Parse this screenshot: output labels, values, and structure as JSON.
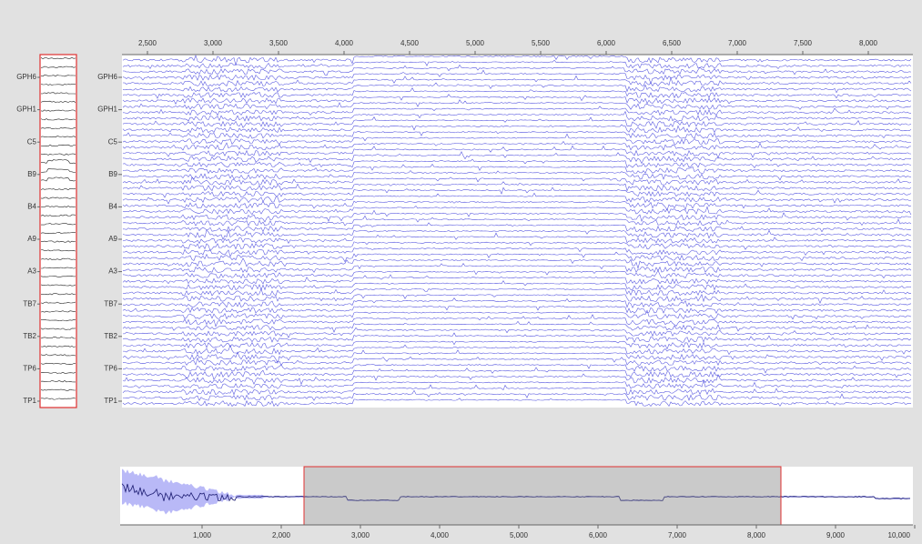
{
  "channels": [
    "GPH6",
    "GPH1",
    "C5",
    "B9",
    "B4",
    "A9",
    "A3",
    "TB7",
    "TB2",
    "TP6",
    "TP1"
  ],
  "main_axis": {
    "ticks": [
      "2,500",
      "3,000",
      "3,500",
      "4,000",
      "4,500",
      "5,000",
      "5,500",
      "6,000",
      "6,500",
      "7,000",
      "7,500",
      "8,000"
    ]
  },
  "overview_axis": {
    "ticks": [
      "1,000",
      "2,000",
      "3,000",
      "4,000",
      "5,000",
      "6,000",
      "7,000",
      "8,000",
      "9,000",
      "10,000"
    ]
  }
}
